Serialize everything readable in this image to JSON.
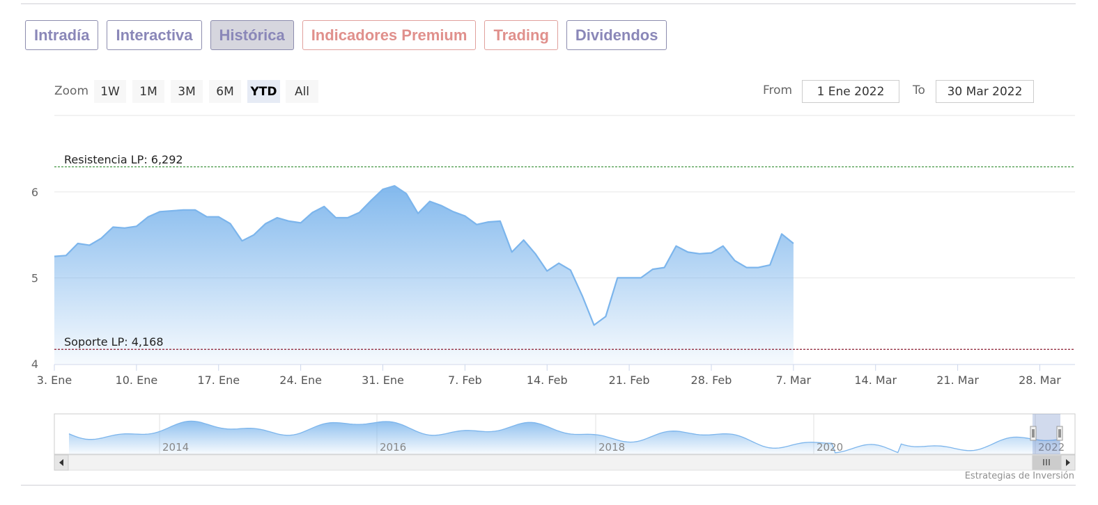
{
  "tabs": [
    {
      "label": "Intradía",
      "style": "purple",
      "active": false
    },
    {
      "label": "Interactiva",
      "style": "purple",
      "active": false
    },
    {
      "label": "Histórica",
      "style": "purple",
      "active": true
    },
    {
      "label": "Indicadores Premium",
      "style": "red",
      "active": false
    },
    {
      "label": "Trading",
      "style": "red",
      "active": false
    },
    {
      "label": "Dividendos",
      "style": "purple",
      "active": false
    }
  ],
  "range_selector": {
    "zoom_label": "Zoom",
    "buttons": [
      "1W",
      "1M",
      "3M",
      "6M",
      "YTD",
      "All"
    ],
    "selected": "YTD",
    "from_label": "From",
    "from_value": "1 Ene 2022",
    "to_label": "To",
    "to_value": "30 Mar 2022"
  },
  "chart_data": {
    "type": "area",
    "title": "",
    "xlabel": "",
    "ylabel": "",
    "x_range": [
      "2022-01-03",
      "2022-03-31"
    ],
    "ylim": [
      4,
      6.25
    ],
    "yticks": [
      4,
      5,
      6
    ],
    "xticks": [
      {
        "date": "2022-01-03",
        "label": "3. Ene"
      },
      {
        "date": "2022-01-10",
        "label": "10. Ene"
      },
      {
        "date": "2022-01-17",
        "label": "17. Ene"
      },
      {
        "date": "2022-01-24",
        "label": "24. Ene"
      },
      {
        "date": "2022-01-31",
        "label": "31. Ene"
      },
      {
        "date": "2022-02-07",
        "label": "7. Feb"
      },
      {
        "date": "2022-02-14",
        "label": "14. Feb"
      },
      {
        "date": "2022-02-21",
        "label": "21. Feb"
      },
      {
        "date": "2022-02-28",
        "label": "28. Feb"
      },
      {
        "date": "2022-03-07",
        "label": "7. Mar"
      },
      {
        "date": "2022-03-14",
        "label": "14. Mar"
      },
      {
        "date": "2022-03-21",
        "label": "21. Mar"
      },
      {
        "date": "2022-03-28",
        "label": "28. Mar"
      }
    ],
    "grid": true,
    "plot_lines": [
      {
        "label": "Resistencia LP: 6,292",
        "value": 6.292,
        "color": "#2e8b2e"
      },
      {
        "label": "Soporte LP: 4,168",
        "value": 4.168,
        "color": "#8b1a2e"
      }
    ],
    "points": [
      [
        "2022-01-03",
        5.25
      ],
      [
        "2022-01-04",
        5.26
      ],
      [
        "2022-01-05",
        5.4
      ],
      [
        "2022-01-06",
        5.38
      ],
      [
        "2022-01-07",
        5.46
      ],
      [
        "2022-01-08",
        5.59
      ],
      [
        "2022-01-09",
        5.58
      ],
      [
        "2022-01-10",
        5.6
      ],
      [
        "2022-01-11",
        5.71
      ],
      [
        "2022-01-12",
        5.77
      ],
      [
        "2022-01-13",
        5.78
      ],
      [
        "2022-01-14",
        5.79
      ],
      [
        "2022-01-15",
        5.79
      ],
      [
        "2022-01-16",
        5.71
      ],
      [
        "2022-01-17",
        5.71
      ],
      [
        "2022-01-18",
        5.63
      ],
      [
        "2022-01-19",
        5.43
      ],
      [
        "2022-01-20",
        5.5
      ],
      [
        "2022-01-21",
        5.63
      ],
      [
        "2022-01-22",
        5.7
      ],
      [
        "2022-01-23",
        5.66
      ],
      [
        "2022-01-24",
        5.64
      ],
      [
        "2022-01-25",
        5.76
      ],
      [
        "2022-01-26",
        5.83
      ],
      [
        "2022-01-27",
        5.7
      ],
      [
        "2022-01-28",
        5.7
      ],
      [
        "2022-01-29",
        5.76
      ],
      [
        "2022-01-30",
        5.9
      ],
      [
        "2022-01-31",
        6.03
      ],
      [
        "2022-02-01",
        6.07
      ],
      [
        "2022-02-02",
        5.98
      ],
      [
        "2022-02-03",
        5.75
      ],
      [
        "2022-02-04",
        5.89
      ],
      [
        "2022-02-05",
        5.84
      ],
      [
        "2022-02-06",
        5.77
      ],
      [
        "2022-02-07",
        5.72
      ],
      [
        "2022-02-08",
        5.62
      ],
      [
        "2022-02-09",
        5.65
      ],
      [
        "2022-02-10",
        5.66
      ],
      [
        "2022-02-11",
        5.3
      ],
      [
        "2022-02-12",
        5.44
      ],
      [
        "2022-02-13",
        5.28
      ],
      [
        "2022-02-14",
        5.08
      ],
      [
        "2022-02-15",
        5.17
      ],
      [
        "2022-02-16",
        5.09
      ],
      [
        "2022-02-17",
        4.79
      ],
      [
        "2022-02-18",
        4.45
      ],
      [
        "2022-02-19",
        4.55
      ],
      [
        "2022-02-20",
        5.0
      ],
      [
        "2022-02-21",
        5.0
      ],
      [
        "2022-02-22",
        5.0
      ],
      [
        "2022-02-23",
        5.1
      ],
      [
        "2022-02-24",
        5.12
      ],
      [
        "2022-02-25",
        5.37
      ],
      [
        "2022-02-26",
        5.3
      ],
      [
        "2022-02-27",
        5.28
      ],
      [
        "2022-02-28",
        5.29
      ],
      [
        "2022-03-01",
        5.37
      ],
      [
        "2022-03-02",
        5.2
      ],
      [
        "2022-03-03",
        5.12
      ],
      [
        "2022-03-04",
        5.12
      ],
      [
        "2022-03-05",
        5.15
      ],
      [
        "2022-03-06",
        5.51
      ],
      [
        "2022-03-07",
        5.4
      ]
    ]
  },
  "navigator": {
    "year_labels": [
      "2014",
      "2016",
      "2018",
      "2020",
      "2022"
    ]
  },
  "credit": "Estrategias de Inversión",
  "colors": {
    "series_line": "#7cb5ec",
    "series_fill_top": "#7cb5ec",
    "grid": "#e6e6e6",
    "axis": "#ccd6eb"
  }
}
